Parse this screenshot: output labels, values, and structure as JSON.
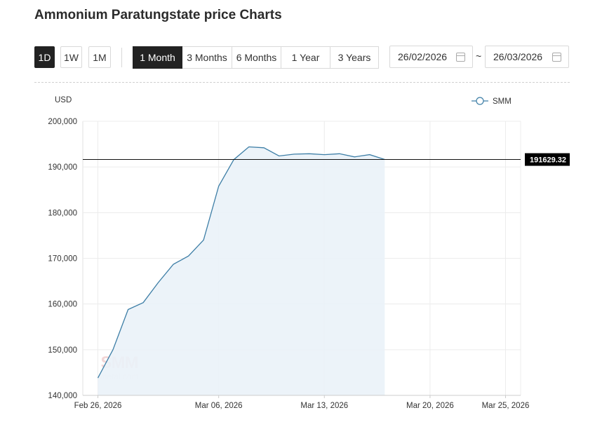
{
  "page": {
    "title": "Ammonium Paratungstate price Charts"
  },
  "quick_buttons": [
    {
      "label": "1D",
      "active": true
    },
    {
      "label": "1W",
      "active": false
    },
    {
      "label": "1M",
      "active": false
    }
  ],
  "range_buttons": [
    {
      "label": "1 Month",
      "active": true
    },
    {
      "label": "3 Months",
      "active": false
    },
    {
      "label": "6 Months",
      "active": false
    },
    {
      "label": "1 Year",
      "active": false
    },
    {
      "label": "3 Years",
      "active": false
    }
  ],
  "date_range": {
    "start": "26/02/2026",
    "separator": "~",
    "end": "26/03/2026"
  },
  "colors": {
    "line": "#3d7ea6",
    "area": "#eaf2f8",
    "grid": "#ececec",
    "active_button": "#222222"
  },
  "icons": {
    "calendar": "calendar-icon",
    "legend_marker": "circle-line-marker"
  },
  "chart_data": {
    "type": "area",
    "unit_label": "USD",
    "legend": [
      {
        "name": "SMM"
      }
    ],
    "legend_placement": "top-right",
    "ylim": [
      140000,
      200000
    ],
    "yticks": [
      {
        "value": 140000,
        "label": "140,000"
      },
      {
        "value": 150000,
        "label": "150,000"
      },
      {
        "value": 160000,
        "label": "160,000"
      },
      {
        "value": 170000,
        "label": "170,000"
      },
      {
        "value": 180000,
        "label": "180,000"
      },
      {
        "value": 190000,
        "label": "190,000"
      },
      {
        "value": 200000,
        "label": "200,000"
      }
    ],
    "xlim": [
      "2026-02-25",
      "2026-03-26"
    ],
    "xticks": [
      {
        "date": "2026-02-26",
        "label": "Feb 26, 2026"
      },
      {
        "date": "2026-03-06",
        "label": "Mar 06, 2026"
      },
      {
        "date": "2026-03-13",
        "label": "Mar 13, 2026"
      },
      {
        "date": "2026-03-20",
        "label": "Mar 20, 2026"
      },
      {
        "date": "2026-03-25",
        "label": "Mar 25, 2026"
      }
    ],
    "grid": true,
    "series": [
      {
        "name": "SMM",
        "points": [
          {
            "x": "2026-02-26",
            "y": 143800
          },
          {
            "x": "2026-02-27",
            "y": 150000
          },
          {
            "x": "2026-02-28",
            "y": 158800
          },
          {
            "x": "2026-03-01",
            "y": 160300
          },
          {
            "x": "2026-03-02",
            "y": 164700
          },
          {
            "x": "2026-03-03",
            "y": 168700
          },
          {
            "x": "2026-03-04",
            "y": 170500
          },
          {
            "x": "2026-03-05",
            "y": 174000
          },
          {
            "x": "2026-03-06",
            "y": 185800
          },
          {
            "x": "2026-03-07",
            "y": 191600
          },
          {
            "x": "2026-03-08",
            "y": 194400
          },
          {
            "x": "2026-03-09",
            "y": 194200
          },
          {
            "x": "2026-03-10",
            "y": 192400
          },
          {
            "x": "2026-03-11",
            "y": 192800
          },
          {
            "x": "2026-03-12",
            "y": 192900
          },
          {
            "x": "2026-03-13",
            "y": 192700
          },
          {
            "x": "2026-03-14",
            "y": 192900
          },
          {
            "x": "2026-03-15",
            "y": 192200
          },
          {
            "x": "2026-03-16",
            "y": 192700
          },
          {
            "x": "2026-03-17",
            "y": 191629.32
          }
        ]
      }
    ],
    "reference_line": {
      "value": 191629.32,
      "label": "191629.32"
    },
    "watermark": "SMM metal.com"
  }
}
